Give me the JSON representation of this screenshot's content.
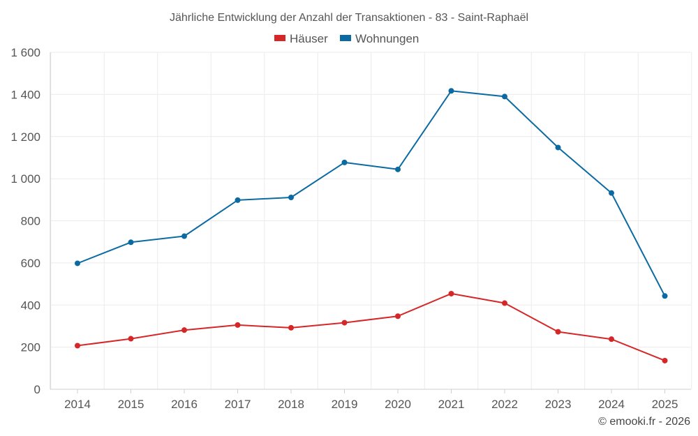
{
  "chart_data": {
    "type": "line",
    "title": "Jährliche Entwicklung der Anzahl der Transaktionen - 83 - Saint-Raphaël",
    "categories": [
      "2014",
      "2015",
      "2016",
      "2017",
      "2018",
      "2019",
      "2020",
      "2021",
      "2022",
      "2023",
      "2024",
      "2025"
    ],
    "series": [
      {
        "name": "Häuser",
        "color": "#d62728",
        "values": [
          207,
          240,
          281,
          305,
          292,
          316,
          347,
          454,
          409,
          273,
          238,
          136
        ]
      },
      {
        "name": "Wohnungen",
        "color": "#0b6aa2",
        "values": [
          598,
          698,
          727,
          898,
          911,
          1077,
          1044,
          1417,
          1390,
          1148,
          932,
          443
        ]
      }
    ],
    "y_ticks": [
      "0",
      "200",
      "400",
      "600",
      "800",
      "1 000",
      "1 200",
      "1 400",
      "1 600"
    ],
    "y_tick_values": [
      0,
      200,
      400,
      600,
      800,
      1000,
      1200,
      1400,
      1600
    ],
    "ylim": [
      0,
      1600
    ],
    "xlabel": "",
    "ylabel": "",
    "grid": true,
    "legend_position": "top-center"
  },
  "credit": "© emooki.fr - 2026"
}
